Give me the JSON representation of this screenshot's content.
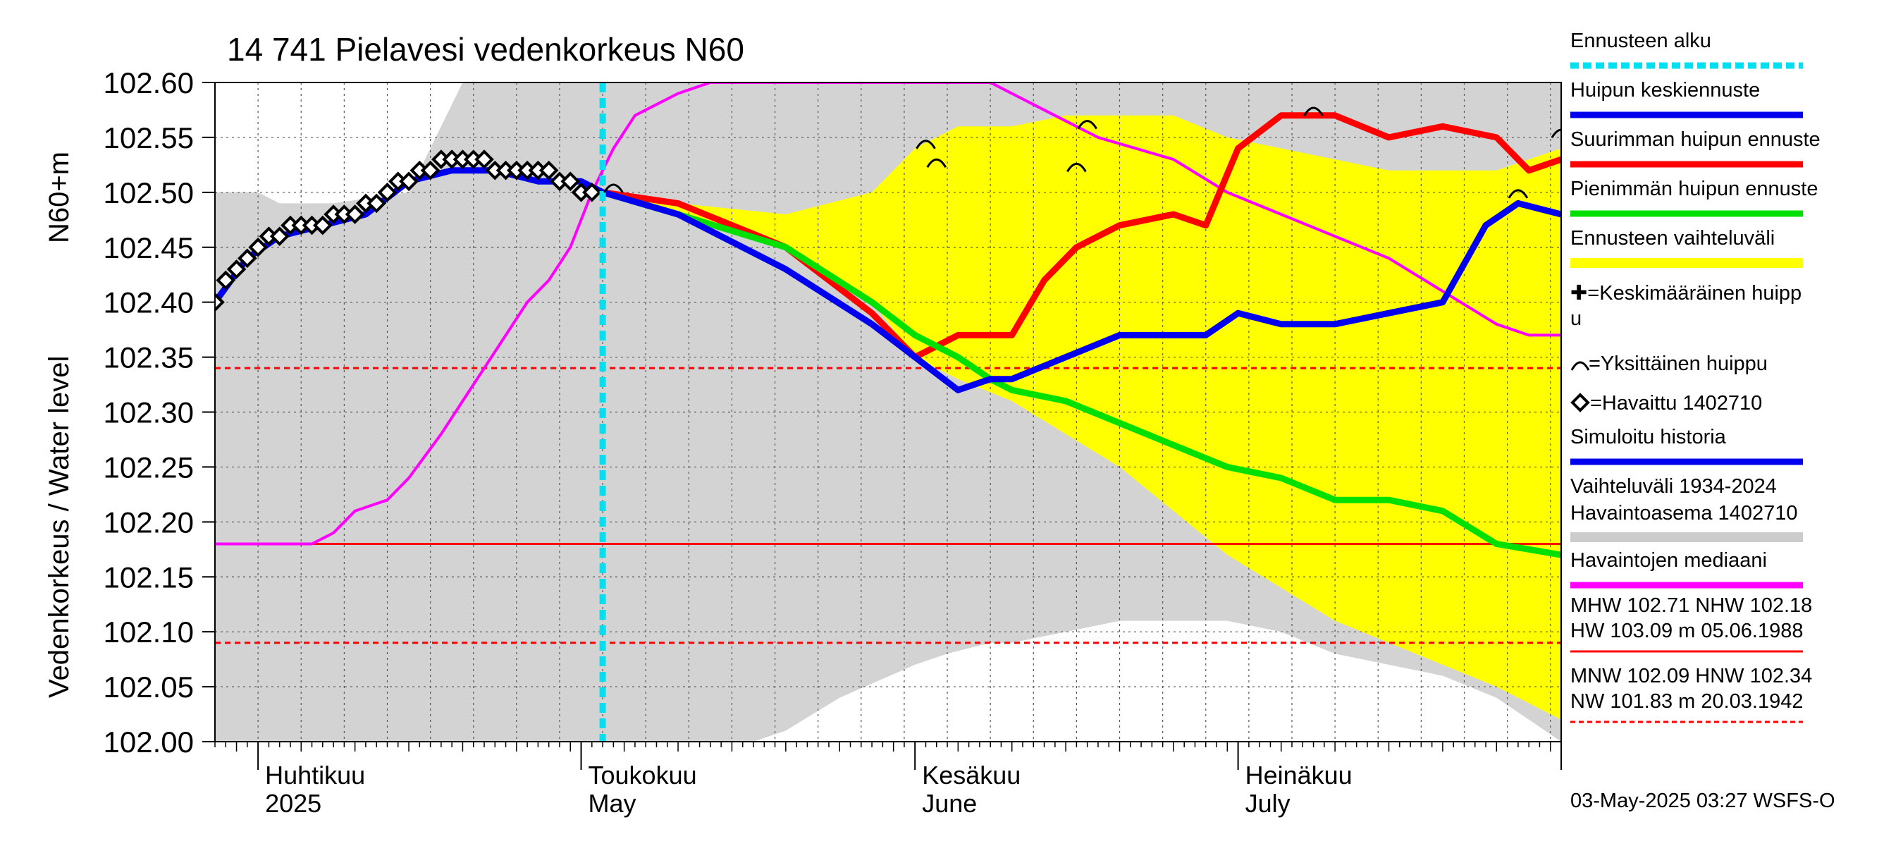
{
  "chart_data": {
    "type": "line",
    "title": "14 741 Pielavesi vedenkorkeus N60",
    "ylabel_top": "N60+m",
    "ylabel": "Vedenkorkeus / Water level",
    "ylim": [
      102.0,
      102.6
    ],
    "yticks": [
      "102.60",
      "102.55",
      "102.50",
      "102.45",
      "102.40",
      "102.35",
      "102.30",
      "102.25",
      "102.20",
      "102.15",
      "102.10",
      "102.05",
      "102.00"
    ],
    "xlim": [
      "2025-03-28",
      "2025-07-31"
    ],
    "months": [
      {
        "date": "2025-04-01",
        "fi": "Huhtikuu",
        "en": "2025"
      },
      {
        "date": "2025-05-01",
        "fi": "Toukokuu",
        "en": "May"
      },
      {
        "date": "2025-06-01",
        "fi": "Kesäkuu",
        "en": "June"
      },
      {
        "date": "2025-07-01",
        "fi": "Heinäkuu",
        "en": "July"
      }
    ],
    "forecast_start": "2025-05-03",
    "reference_lines": {
      "MHW": 102.71,
      "NHW": 102.18,
      "MNW": 102.09,
      "HNW": 102.34
    },
    "history_band": {
      "name": "Vaihteluväli 1934-2024 Havaintoasema 1402710",
      "x": [
        "2025-03-28",
        "2025-04-01",
        "2025-04-03",
        "2025-04-05",
        "2025-04-08",
        "2025-04-15",
        "2025-04-20",
        "2025-04-30",
        "2025-05-10",
        "2025-05-17",
        "2025-05-20",
        "2025-05-25",
        "2025-06-01",
        "2025-06-04",
        "2025-06-08",
        "2025-06-10",
        "2025-06-15",
        "2025-06-20",
        "2025-06-25",
        "2025-06-30",
        "2025-07-05",
        "2025-07-10",
        "2025-07-15",
        "2025-07-20",
        "2025-07-25",
        "2025-07-28",
        "2025-07-31"
      ],
      "high": [
        102.5,
        102.5,
        102.49,
        102.49,
        102.49,
        102.5,
        102.6,
        102.6,
        102.6,
        102.6,
        102.6,
        102.6,
        102.6,
        102.6,
        102.6,
        102.6,
        102.6,
        102.6,
        102.6,
        102.6,
        102.6,
        102.6,
        102.6,
        102.6,
        102.6,
        102.6,
        102.6
      ],
      "low": [
        102.0,
        102.0,
        102.0,
        102.0,
        102.0,
        102.0,
        102.0,
        102.0,
        102.0,
        102.0,
        102.01,
        102.04,
        102.07,
        102.08,
        102.09,
        102.09,
        102.1,
        102.11,
        102.11,
        102.11,
        102.1,
        102.08,
        102.07,
        102.06,
        102.04,
        102.02,
        102.0
      ]
    },
    "forecast_band": {
      "name": "Ennusteen vaihteluväli",
      "x": [
        "2025-05-03",
        "2025-05-10",
        "2025-05-20",
        "2025-05-28",
        "2025-06-01",
        "2025-06-05",
        "2025-06-10",
        "2025-06-15",
        "2025-06-20",
        "2025-06-25",
        "2025-06-30",
        "2025-07-05",
        "2025-07-10",
        "2025-07-15",
        "2025-07-20",
        "2025-07-25",
        "2025-07-31"
      ],
      "high": [
        102.5,
        102.49,
        102.48,
        102.5,
        102.54,
        102.56,
        102.56,
        102.57,
        102.57,
        102.57,
        102.55,
        102.54,
        102.53,
        102.52,
        102.52,
        102.52,
        102.54
      ],
      "low": [
        102.5,
        102.48,
        102.45,
        102.4,
        102.35,
        102.33,
        102.31,
        102.28,
        102.25,
        102.21,
        102.17,
        102.14,
        102.11,
        102.09,
        102.07,
        102.05,
        102.02
      ]
    },
    "series": [
      {
        "name": "Havaintojen mediaani",
        "color": "#ff00ff",
        "x": [
          "2025-03-28",
          "2025-04-06",
          "2025-04-08",
          "2025-04-10",
          "2025-04-13",
          "2025-04-15",
          "2025-04-18",
          "2025-04-20",
          "2025-04-22",
          "2025-04-24",
          "2025-04-26",
          "2025-04-28",
          "2025-04-30",
          "2025-05-02",
          "2025-05-04",
          "2025-05-06",
          "2025-05-08",
          "2025-05-10",
          "2025-05-13",
          "2025-06-08",
          "2025-06-10",
          "2025-06-14",
          "2025-06-18",
          "2025-06-25",
          "2025-06-30",
          "2025-07-05",
          "2025-07-10",
          "2025-07-15",
          "2025-07-20",
          "2025-07-25",
          "2025-07-28",
          "2025-07-31"
        ],
        "values": [
          102.18,
          102.18,
          102.19,
          102.21,
          102.22,
          102.24,
          102.28,
          102.31,
          102.34,
          102.37,
          102.4,
          102.42,
          102.45,
          102.5,
          102.54,
          102.57,
          102.58,
          102.59,
          102.6,
          102.6,
          102.59,
          102.57,
          102.55,
          102.53,
          102.5,
          102.48,
          102.46,
          102.44,
          102.41,
          102.38,
          102.37,
          102.37
        ]
      },
      {
        "name": "Suurimman huipun ennuste",
        "color": "#ff0000",
        "x": [
          "2025-05-03",
          "2025-05-10",
          "2025-05-20",
          "2025-05-28",
          "2025-06-01",
          "2025-06-05",
          "2025-06-08",
          "2025-06-10",
          "2025-06-13",
          "2025-06-16",
          "2025-06-20",
          "2025-06-25",
          "2025-06-28",
          "2025-07-01",
          "2025-07-05",
          "2025-07-10",
          "2025-07-15",
          "2025-07-20",
          "2025-07-25",
          "2025-07-28",
          "2025-07-31"
        ],
        "values": [
          102.5,
          102.49,
          102.45,
          102.39,
          102.35,
          102.37,
          102.37,
          102.37,
          102.42,
          102.45,
          102.47,
          102.48,
          102.47,
          102.54,
          102.57,
          102.57,
          102.55,
          102.56,
          102.55,
          102.52,
          102.53
        ]
      },
      {
        "name": "Pienimmän huipun ennuste",
        "color": "#00e000",
        "x": [
          "2025-05-03",
          "2025-05-10",
          "2025-05-20",
          "2025-05-28",
          "2025-06-01",
          "2025-06-05",
          "2025-06-08",
          "2025-06-10",
          "2025-06-15",
          "2025-06-20",
          "2025-06-25",
          "2025-06-30",
          "2025-07-05",
          "2025-07-10",
          "2025-07-15",
          "2025-07-20",
          "2025-07-25",
          "2025-07-31"
        ],
        "values": [
          102.5,
          102.48,
          102.45,
          102.4,
          102.37,
          102.35,
          102.33,
          102.32,
          102.31,
          102.29,
          102.27,
          102.25,
          102.24,
          102.22,
          102.22,
          102.21,
          102.18,
          102.17
        ]
      },
      {
        "name": "Huipun keskiennuste",
        "color": "#0000ee",
        "x": [
          "2025-05-03",
          "2025-05-10",
          "2025-05-20",
          "2025-05-28",
          "2025-06-01",
          "2025-06-05",
          "2025-06-08",
          "2025-06-10",
          "2025-06-15",
          "2025-06-20",
          "2025-06-25",
          "2025-06-28",
          "2025-07-01",
          "2025-07-05",
          "2025-07-10",
          "2025-07-15",
          "2025-07-20",
          "2025-07-24",
          "2025-07-27",
          "2025-07-31"
        ],
        "values": [
          102.5,
          102.48,
          102.43,
          102.38,
          102.35,
          102.32,
          102.33,
          102.33,
          102.35,
          102.37,
          102.37,
          102.37,
          102.39,
          102.38,
          102.38,
          102.39,
          102.4,
          102.47,
          102.49,
          102.48
        ]
      },
      {
        "name": "Simuloitu historia",
        "color": "#0000ee",
        "x": [
          "2025-03-28",
          "2025-03-31",
          "2025-04-03",
          "2025-04-07",
          "2025-04-11",
          "2025-04-15",
          "2025-04-19",
          "2025-04-23",
          "2025-04-27",
          "2025-05-01",
          "2025-05-03"
        ],
        "values": [
          102.4,
          102.44,
          102.46,
          102.47,
          102.48,
          102.51,
          102.52,
          102.52,
          102.51,
          102.51,
          102.5
        ]
      },
      {
        "name": "Havaittu 1402710",
        "color": "#000000",
        "marker": "diamond",
        "x": [
          "2025-03-28",
          "2025-03-29",
          "2025-03-30",
          "2025-03-31",
          "2025-04-01",
          "2025-04-02",
          "2025-04-03",
          "2025-04-04",
          "2025-04-05",
          "2025-04-06",
          "2025-04-07",
          "2025-04-08",
          "2025-04-09",
          "2025-04-10",
          "2025-04-11",
          "2025-04-12",
          "2025-04-13",
          "2025-04-14",
          "2025-04-15",
          "2025-04-16",
          "2025-04-17",
          "2025-04-18",
          "2025-04-19",
          "2025-04-20",
          "2025-04-21",
          "2025-04-22",
          "2025-04-23",
          "2025-04-24",
          "2025-04-25",
          "2025-04-26",
          "2025-04-27",
          "2025-04-28",
          "2025-04-29",
          "2025-04-30",
          "2025-05-01",
          "2025-05-02"
        ],
        "values": [
          102.4,
          102.42,
          102.43,
          102.44,
          102.45,
          102.46,
          102.46,
          102.47,
          102.47,
          102.47,
          102.47,
          102.48,
          102.48,
          102.48,
          102.49,
          102.49,
          102.5,
          102.51,
          102.51,
          102.52,
          102.52,
          102.53,
          102.53,
          102.53,
          102.53,
          102.53,
          102.52,
          102.52,
          102.52,
          102.52,
          102.52,
          102.52,
          102.51,
          102.51,
          102.5,
          102.5
        ]
      }
    ],
    "single_peaks": {
      "name": "Yksittäinen huippu",
      "x": [
        "2025-05-04",
        "2025-06-02",
        "2025-06-03",
        "2025-06-16",
        "2025-06-17",
        "2025-07-08",
        "2025-07-27",
        "2025-07-31"
      ],
      "values": [
        102.505,
        102.545,
        102.528,
        102.524,
        102.563,
        102.575,
        102.5,
        102.555
      ]
    },
    "legend": [
      {
        "label": "Ennusteen alku",
        "color": "#00e0f0",
        "style": "dotted"
      },
      {
        "label": "Huipun keskiennuste",
        "color": "#0000ee",
        "style": "line"
      },
      {
        "label": "Suurimman huipun ennuste",
        "color": "#ff0000",
        "style": "line"
      },
      {
        "label": "Pienimmän huipun ennuste",
        "color": "#00e000",
        "style": "line"
      },
      {
        "label": "Ennusteen vaihteluväli",
        "color": "#ffff00",
        "style": "line"
      },
      {
        "label": "✚=Keskimääräinen huipp u",
        "style": "text"
      },
      {
        "label": "=Yksittäinen huippu",
        "style": "text"
      },
      {
        "label": "=Havaittu 1402710",
        "style": "text"
      },
      {
        "label": "Simuloitu historia",
        "color": "#0000ee",
        "style": "line"
      },
      {
        "label": "Vaihteluväli 1934-2024",
        "sub": " Havaintoasema 1402710",
        "color": "#cccccc",
        "style": "line"
      },
      {
        "label": "Havaintojen mediaani",
        "color": "#ff00ff",
        "style": "line"
      }
    ],
    "stats": [
      {
        "line1": "MHW 102.71 NHW 102.18",
        "line2": "HW 103.09 m 05.06.1988",
        "color": "#ff0000",
        "style": "solid"
      },
      {
        "line1": "MNW 102.09 HNW 102.34",
        "line2": "NW 101.83 m 20.03.1942",
        "color": "#ff0000",
        "style": "dashed"
      }
    ],
    "footer": "03-May-2025 03:27 WSFS-O"
  }
}
